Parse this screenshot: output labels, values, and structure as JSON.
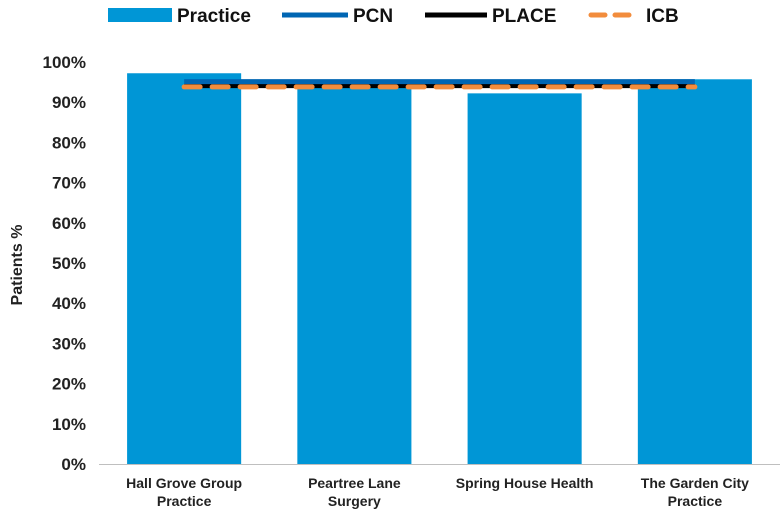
{
  "chart_data": {
    "type": "bar",
    "title": "",
    "xlabel": "",
    "ylabel": "Patients %",
    "ylim": [
      0,
      100
    ],
    "y_ticks": [
      "0%",
      "10%",
      "20%",
      "30%",
      "40%",
      "50%",
      "60%",
      "70%",
      "80%",
      "90%",
      "100%"
    ],
    "y_tick_values": [
      0,
      10,
      20,
      30,
      40,
      50,
      60,
      70,
      80,
      90,
      100
    ],
    "grid": false,
    "legend_placement": "top",
    "categories": [
      [
        "Hall Grove Group",
        "Practice"
      ],
      [
        "Peartree Lane",
        "Surgery"
      ],
      [
        "Spring House Health"
      ],
      [
        "The Garden City",
        "Practice"
      ]
    ],
    "series": [
      {
        "name": "Practice",
        "type": "bar",
        "color": "#0096D6",
        "values": [
          97.2,
          93.6,
          92.2,
          95.7
        ]
      },
      {
        "name": "PCN",
        "type": "line",
        "color": "#0066B3",
        "values": [
          95.0,
          95.0,
          95.0,
          95.0
        ]
      },
      {
        "name": "PLACE",
        "type": "line",
        "color": "#000000",
        "values": [
          94.0,
          94.0,
          94.0,
          94.0
        ]
      },
      {
        "name": "ICB",
        "type": "dashed-line",
        "color": "#F28C3C",
        "values": [
          93.8,
          93.8,
          93.8,
          93.8
        ]
      }
    ]
  }
}
